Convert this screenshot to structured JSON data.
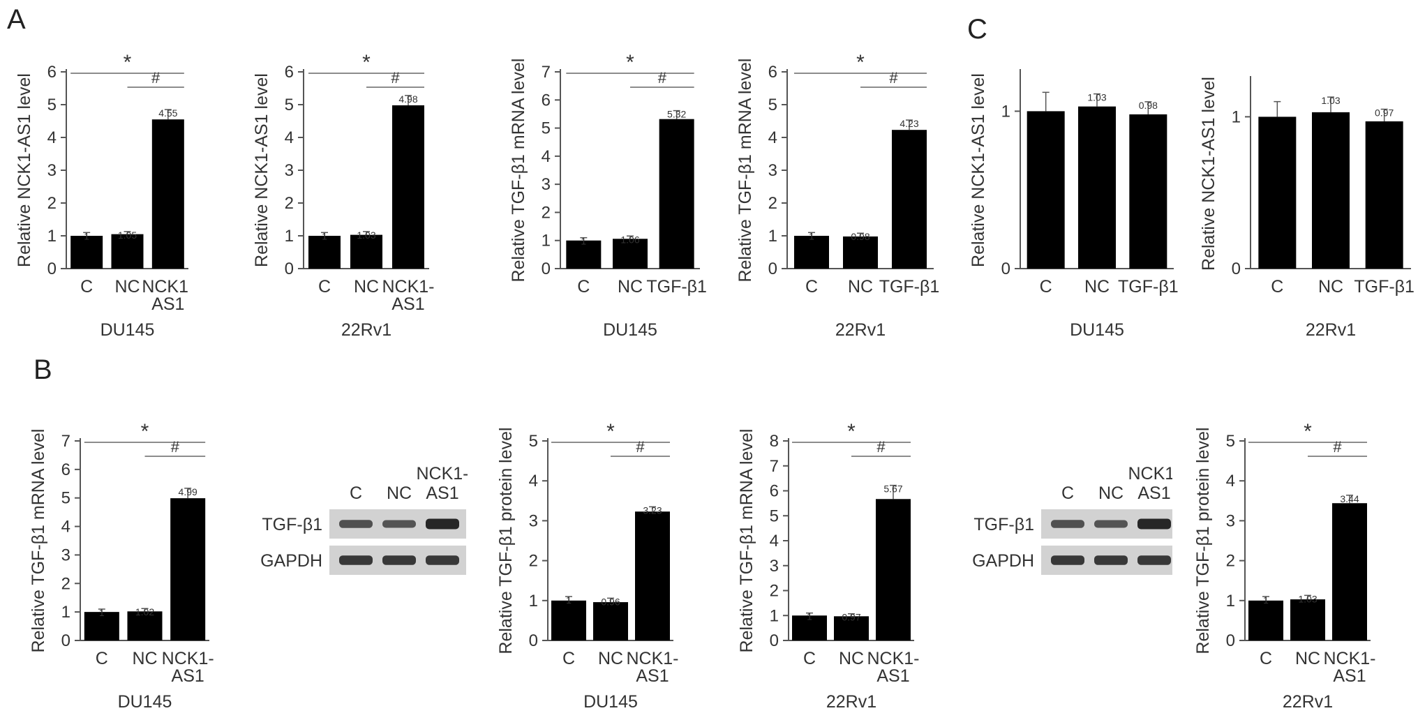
{
  "panel_labels": {
    "a": "A",
    "b": "B",
    "c": "C"
  },
  "chart_data": [
    {
      "type": "bar",
      "panel": "A",
      "ylabel": "Relative NCK1-AS1 level",
      "group": "DU145",
      "categories": [
        [
          "C"
        ],
        [
          "NC"
        ],
        [
          "NCK1-",
          "AS1"
        ]
      ],
      "values": [
        1,
        1.05,
        4.55
      ],
      "value_labels": [
        "1",
        "1.05",
        "4.55"
      ],
      "errors": [
        0.1,
        0.08,
        0.3
      ],
      "ylim": [
        0,
        6
      ],
      "yticks": [
        0,
        1,
        2,
        3,
        4,
        5,
        6
      ],
      "significance": [
        {
          "symbol": "*",
          "from": 0,
          "to": 2
        },
        {
          "symbol": "#",
          "from": 1,
          "to": 2
        }
      ]
    },
    {
      "type": "bar",
      "panel": "A",
      "ylabel": "Relative NCK1-AS1 level",
      "group": "22Rv1",
      "categories": [
        [
          "C"
        ],
        [
          "NC"
        ],
        [
          "NCK1-",
          "AS1"
        ]
      ],
      "values": [
        1,
        1.03,
        4.98
      ],
      "value_labels": [
        "1",
        "1.03",
        "4.98"
      ],
      "errors": [
        0.1,
        0.1,
        0.3
      ],
      "ylim": [
        0,
        6
      ],
      "yticks": [
        0,
        1,
        2,
        3,
        4,
        5,
        6
      ],
      "significance": [
        {
          "symbol": "*",
          "from": 0,
          "to": 2
        },
        {
          "symbol": "#",
          "from": 1,
          "to": 2
        }
      ]
    },
    {
      "type": "bar",
      "panel": "A",
      "ylabel": "Relative TGF-β1 mRNA level",
      "group": "DU145",
      "categories": [
        [
          "C"
        ],
        [
          "NC"
        ],
        [
          "TGF-β1"
        ]
      ],
      "values": [
        1,
        1.06,
        5.32
      ],
      "value_labels": [
        "1",
        "1.06",
        "5.32"
      ],
      "errors": [
        0.1,
        0.1,
        0.3
      ],
      "ylim": [
        0,
        7
      ],
      "yticks": [
        0,
        1,
        2,
        3,
        4,
        5,
        6,
        7
      ],
      "significance": [
        {
          "symbol": "*",
          "from": 0,
          "to": 2
        },
        {
          "symbol": "#",
          "from": 1,
          "to": 2
        }
      ]
    },
    {
      "type": "bar",
      "panel": "A",
      "ylabel": "Relative TGF-β1 mRNA level",
      "group": "22Rv1",
      "categories": [
        [
          "C"
        ],
        [
          "NC"
        ],
        [
          "TGF-β1"
        ]
      ],
      "values": [
        1,
        0.98,
        4.23
      ],
      "value_labels": [
        "1",
        "0.98",
        "4.23"
      ],
      "errors": [
        0.1,
        0.1,
        0.3
      ],
      "ylim": [
        0,
        6
      ],
      "yticks": [
        0,
        1,
        2,
        3,
        4,
        5,
        6
      ],
      "significance": [
        {
          "symbol": "*",
          "from": 0,
          "to": 2
        },
        {
          "symbol": "#",
          "from": 1,
          "to": 2
        }
      ]
    },
    {
      "type": "bar",
      "panel": "C",
      "ylabel": "Relative NCK1-AS1 level",
      "group": "DU145",
      "categories": [
        [
          "C"
        ],
        [
          "NC"
        ],
        [
          "TGF-β1"
        ]
      ],
      "values": [
        1,
        1.03,
        0.98
      ],
      "value_labels": [
        "",
        "1.03",
        "0.98"
      ],
      "errors": [
        0.12,
        0.08,
        0.08
      ],
      "ylim": [
        0,
        1.25
      ],
      "yticks": [
        0,
        1
      ],
      "significance": []
    },
    {
      "type": "bar",
      "panel": "C",
      "ylabel": "Relative NCK1-AS1 level",
      "group": "22Rv1",
      "categories": [
        [
          "C"
        ],
        [
          "NC"
        ],
        [
          "TGF-β1"
        ]
      ],
      "values": [
        1,
        1.03,
        0.97
      ],
      "value_labels": [
        "",
        "1.03",
        "0.97"
      ],
      "errors": [
        0.1,
        0.1,
        0.08
      ],
      "ylim": [
        0,
        1.25
      ],
      "yticks": [
        0,
        1
      ],
      "significance": []
    },
    {
      "type": "bar",
      "panel": "B",
      "ylabel": "Relative TGF-β1 mRNA level",
      "group": "DU145",
      "categories": [
        [
          "C"
        ],
        [
          "NC"
        ],
        [
          "NCK1-",
          "AS1"
        ]
      ],
      "values": [
        1,
        1.02,
        4.99
      ],
      "value_labels": [
        "1",
        "1.02",
        "4.99"
      ],
      "errors": [
        0.1,
        0.1,
        0.35
      ],
      "ylim": [
        0,
        7
      ],
      "yticks": [
        0,
        1,
        2,
        3,
        4,
        5,
        6,
        7
      ],
      "significance": [
        {
          "symbol": "*",
          "from": 0,
          "to": 2
        },
        {
          "symbol": "#",
          "from": 1,
          "to": 2
        }
      ]
    },
    {
      "type": "bar",
      "panel": "B",
      "ylabel": "Relative TGF-β1 protein level",
      "group": "DU145",
      "categories": [
        [
          "C"
        ],
        [
          "NC"
        ],
        [
          "NCK1-",
          "AS1"
        ]
      ],
      "values": [
        1,
        0.96,
        3.23
      ],
      "value_labels": [
        "1",
        "0.96",
        "3.23"
      ],
      "errors": [
        0.1,
        0.1,
        0.12
      ],
      "ylim": [
        0,
        5
      ],
      "yticks": [
        0,
        1,
        2,
        3,
        4,
        5
      ],
      "significance": [
        {
          "symbol": "*",
          "from": 0,
          "to": 2
        },
        {
          "symbol": "#",
          "from": 1,
          "to": 2
        }
      ]
    },
    {
      "type": "bar",
      "panel": "B",
      "ylabel": "Relative TGF-β1 mRNA level",
      "group": "22Rv1",
      "categories": [
        [
          "C"
        ],
        [
          "NC"
        ],
        [
          "NCK1-",
          "AS1"
        ]
      ],
      "values": [
        1,
        0.97,
        5.67
      ],
      "value_labels": [
        "1",
        "0.97",
        "5.67"
      ],
      "errors": [
        0.1,
        0.1,
        0.55
      ],
      "ylim": [
        0,
        8
      ],
      "yticks": [
        0,
        1,
        2,
        3,
        4,
        5,
        6,
        7,
        8
      ],
      "significance": [
        {
          "symbol": "*",
          "from": 0,
          "to": 2
        },
        {
          "symbol": "#",
          "from": 1,
          "to": 2
        }
      ]
    },
    {
      "type": "bar",
      "panel": "B",
      "ylabel": "Relative TGF-β1 protein level",
      "group": "22Rv1",
      "categories": [
        [
          "C"
        ],
        [
          "NC"
        ],
        [
          "NCK1-",
          "AS1"
        ]
      ],
      "values": [
        1,
        1.03,
        3.44
      ],
      "value_labels": [
        "1",
        "1.03",
        "3.44"
      ],
      "errors": [
        0.1,
        0.1,
        0.2
      ],
      "ylim": [
        0,
        5
      ],
      "yticks": [
        0,
        1,
        2,
        3,
        4,
        5
      ],
      "significance": [
        {
          "symbol": "*",
          "from": 0,
          "to": 2
        },
        {
          "symbol": "#",
          "from": 1,
          "to": 2
        }
      ]
    }
  ],
  "blots": [
    {
      "lanes": [
        "C",
        "NC",
        "NCK1-\nAS1"
      ],
      "rows": [
        "TGF-β1",
        "GAPDH"
      ],
      "intensity": {
        "TGF-β1": [
          0.55,
          0.5,
          0.9
        ],
        "GAPDH": [
          0.75,
          0.75,
          0.75
        ]
      }
    },
    {
      "lanes": [
        "C",
        "NC",
        "NCK1-\nAS1"
      ],
      "rows": [
        "TGF-β1",
        "GAPDH"
      ],
      "intensity": {
        "TGF-β1": [
          0.55,
          0.5,
          0.9
        ],
        "GAPDH": [
          0.75,
          0.75,
          0.75
        ]
      }
    }
  ],
  "colors": {
    "bar": "#000000",
    "axis": "#555555",
    "text": "#333333",
    "blot_bg": "#d2d2d2",
    "band": "#111111"
  }
}
